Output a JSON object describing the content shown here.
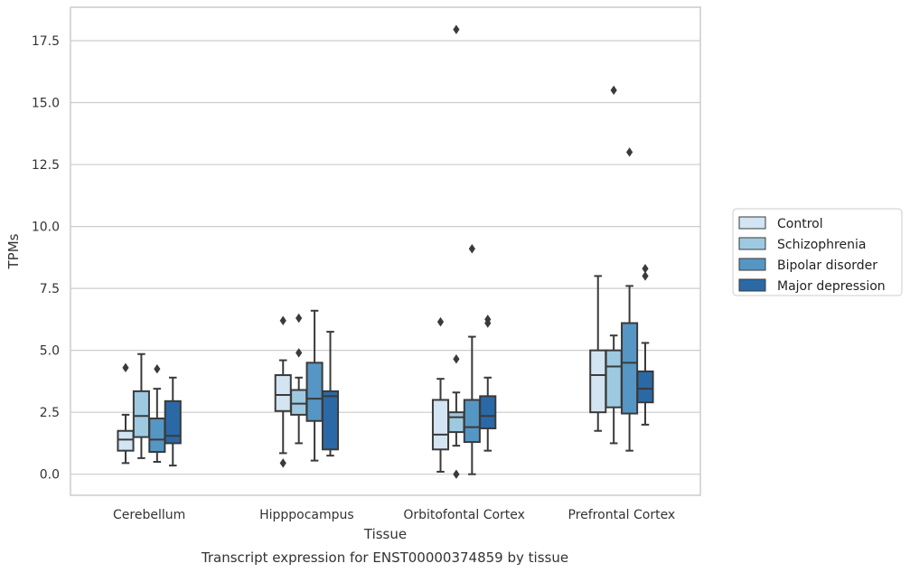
{
  "caption": "Transcript expression for ENST00000374859 by tissue",
  "chart_data": {
    "type": "box",
    "title": "",
    "xlabel": "Tissue",
    "ylabel": "TPMs",
    "ylim": [
      -0.85,
      18.85
    ],
    "yticks": [
      0.0,
      2.5,
      5.0,
      7.5,
      10.0,
      12.5,
      15.0,
      17.5
    ],
    "ytick_labels": [
      "0.0",
      "2.5",
      "5.0",
      "7.5",
      "10.0",
      "12.5",
      "15.0",
      "17.5"
    ],
    "grid": "horizontal",
    "legend_position": "right",
    "categories": [
      "Cerebellum",
      "Hipppocampus",
      "Orbitofontal Cortex",
      "Prefrontal Cortex"
    ],
    "series": [
      {
        "name": "Control",
        "color": "#d3e4f3",
        "boxes": [
          {
            "whislo": 0.45,
            "q1": 0.95,
            "med": 1.4,
            "q3": 1.75,
            "whishi": 2.4,
            "fliers": [
              4.3
            ]
          },
          {
            "whislo": 0.85,
            "q1": 2.55,
            "med": 3.2,
            "q3": 4.0,
            "whishi": 4.6,
            "fliers": [
              6.2,
              0.45
            ]
          },
          {
            "whislo": 0.1,
            "q1": 1.0,
            "med": 1.6,
            "q3": 3.0,
            "whishi": 3.85,
            "fliers": [
              6.15
            ]
          },
          {
            "whislo": 1.75,
            "q1": 2.5,
            "med": 4.0,
            "q3": 5.0,
            "whishi": 8.0,
            "fliers": []
          }
        ]
      },
      {
        "name": "Schizophrenia",
        "color": "#9ecae1",
        "boxes": [
          {
            "whislo": 0.65,
            "q1": 1.5,
            "med": 2.35,
            "q3": 3.35,
            "whishi": 4.85,
            "fliers": []
          },
          {
            "whislo": 1.25,
            "q1": 2.4,
            "med": 2.85,
            "q3": 3.4,
            "whishi": 3.9,
            "fliers": [
              6.3,
              4.9
            ]
          },
          {
            "whislo": 1.15,
            "q1": 1.7,
            "med": 2.3,
            "q3": 2.5,
            "whishi": 3.3,
            "fliers": [
              17.95,
              4.65,
              0.0
            ]
          },
          {
            "whislo": 1.25,
            "q1": 2.7,
            "med": 4.35,
            "q3": 5.0,
            "whishi": 5.6,
            "fliers": [
              15.5
            ]
          }
        ]
      },
      {
        "name": "Bipolar disorder",
        "color": "#5696c4",
        "boxes": [
          {
            "whislo": 0.5,
            "q1": 0.9,
            "med": 1.4,
            "q3": 2.25,
            "whishi": 3.45,
            "fliers": [
              4.25
            ]
          },
          {
            "whislo": 0.55,
            "q1": 2.15,
            "med": 3.05,
            "q3": 4.5,
            "whishi": 6.6,
            "fliers": []
          },
          {
            "whislo": 0.0,
            "q1": 1.3,
            "med": 1.9,
            "q3": 3.0,
            "whishi": 5.55,
            "fliers": [
              9.1
            ]
          },
          {
            "whislo": 0.95,
            "q1": 2.45,
            "med": 4.5,
            "q3": 6.1,
            "whishi": 7.6,
            "fliers": [
              13.0
            ]
          }
        ]
      },
      {
        "name": "Major depression",
        "color": "#2b69a6",
        "boxes": [
          {
            "whislo": 0.35,
            "q1": 1.25,
            "med": 1.55,
            "q3": 2.95,
            "whishi": 3.9,
            "fliers": []
          },
          {
            "whislo": 0.75,
            "q1": 1.0,
            "med": 3.15,
            "q3": 3.35,
            "whishi": 5.75,
            "fliers": []
          },
          {
            "whislo": 0.95,
            "q1": 1.85,
            "med": 2.35,
            "q3": 3.15,
            "whishi": 3.9,
            "fliers": [
              6.25,
              6.1
            ]
          },
          {
            "whislo": 2.0,
            "q1": 2.9,
            "med": 3.45,
            "q3": 4.15,
            "whishi": 5.3,
            "fliers": [
              8.3,
              8.0
            ]
          }
        ]
      }
    ]
  }
}
